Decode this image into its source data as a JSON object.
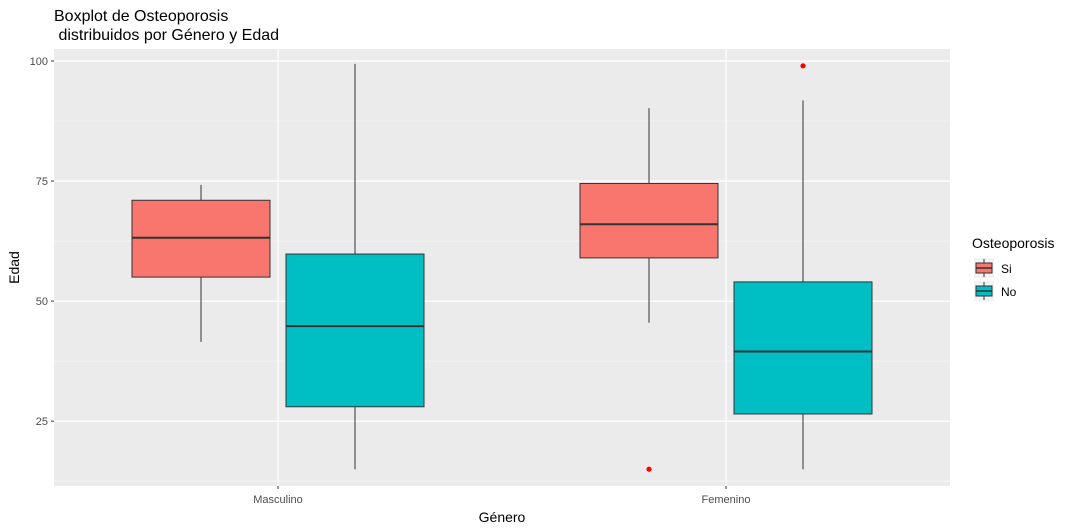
{
  "title_line1": "Boxplot de Osteoporosis",
  "title_line2": " distribuidos por Género y Edad",
  "chart_data": {
    "type": "boxplot",
    "title": "Boxplot de Osteoporosis\n distribuidos por Género y Edad",
    "xlabel": "Género",
    "ylabel": "Edad",
    "categories": [
      "Masculino",
      "Femenino"
    ],
    "yticks": [
      25,
      50,
      75,
      100
    ],
    "ylim": [
      11.5,
      102.5
    ],
    "grid": true,
    "legend": {
      "title": "Osteoporosis",
      "position": "right",
      "entries": [
        {
          "label": "Si",
          "color": "#F8766D"
        },
        {
          "label": "No",
          "color": "#00BFC4"
        }
      ]
    },
    "outlier_color": "#FF0000",
    "series": [
      {
        "name": "Si",
        "color": "#F8766D",
        "boxes": [
          {
            "category": "Masculino",
            "whisker_low": 41.5,
            "q1": 55,
            "median": 63.2,
            "q3": 71,
            "whisker_high": 74.2,
            "outliers": []
          },
          {
            "category": "Femenino",
            "whisker_low": 45.5,
            "q1": 59,
            "median": 66,
            "q3": 74.5,
            "whisker_high": 90.2,
            "outliers": [
              15
            ]
          }
        ]
      },
      {
        "name": "No",
        "color": "#00BFC4",
        "boxes": [
          {
            "category": "Masculino",
            "whisker_low": 15,
            "q1": 28,
            "median": 44.8,
            "q3": 59.8,
            "whisker_high": 99.4,
            "outliers": []
          },
          {
            "category": "Femenino",
            "whisker_low": 15,
            "q1": 26.5,
            "median": 39.5,
            "q3": 54,
            "whisker_high": 91.8,
            "outliers": [
              99
            ]
          }
        ]
      }
    ]
  }
}
